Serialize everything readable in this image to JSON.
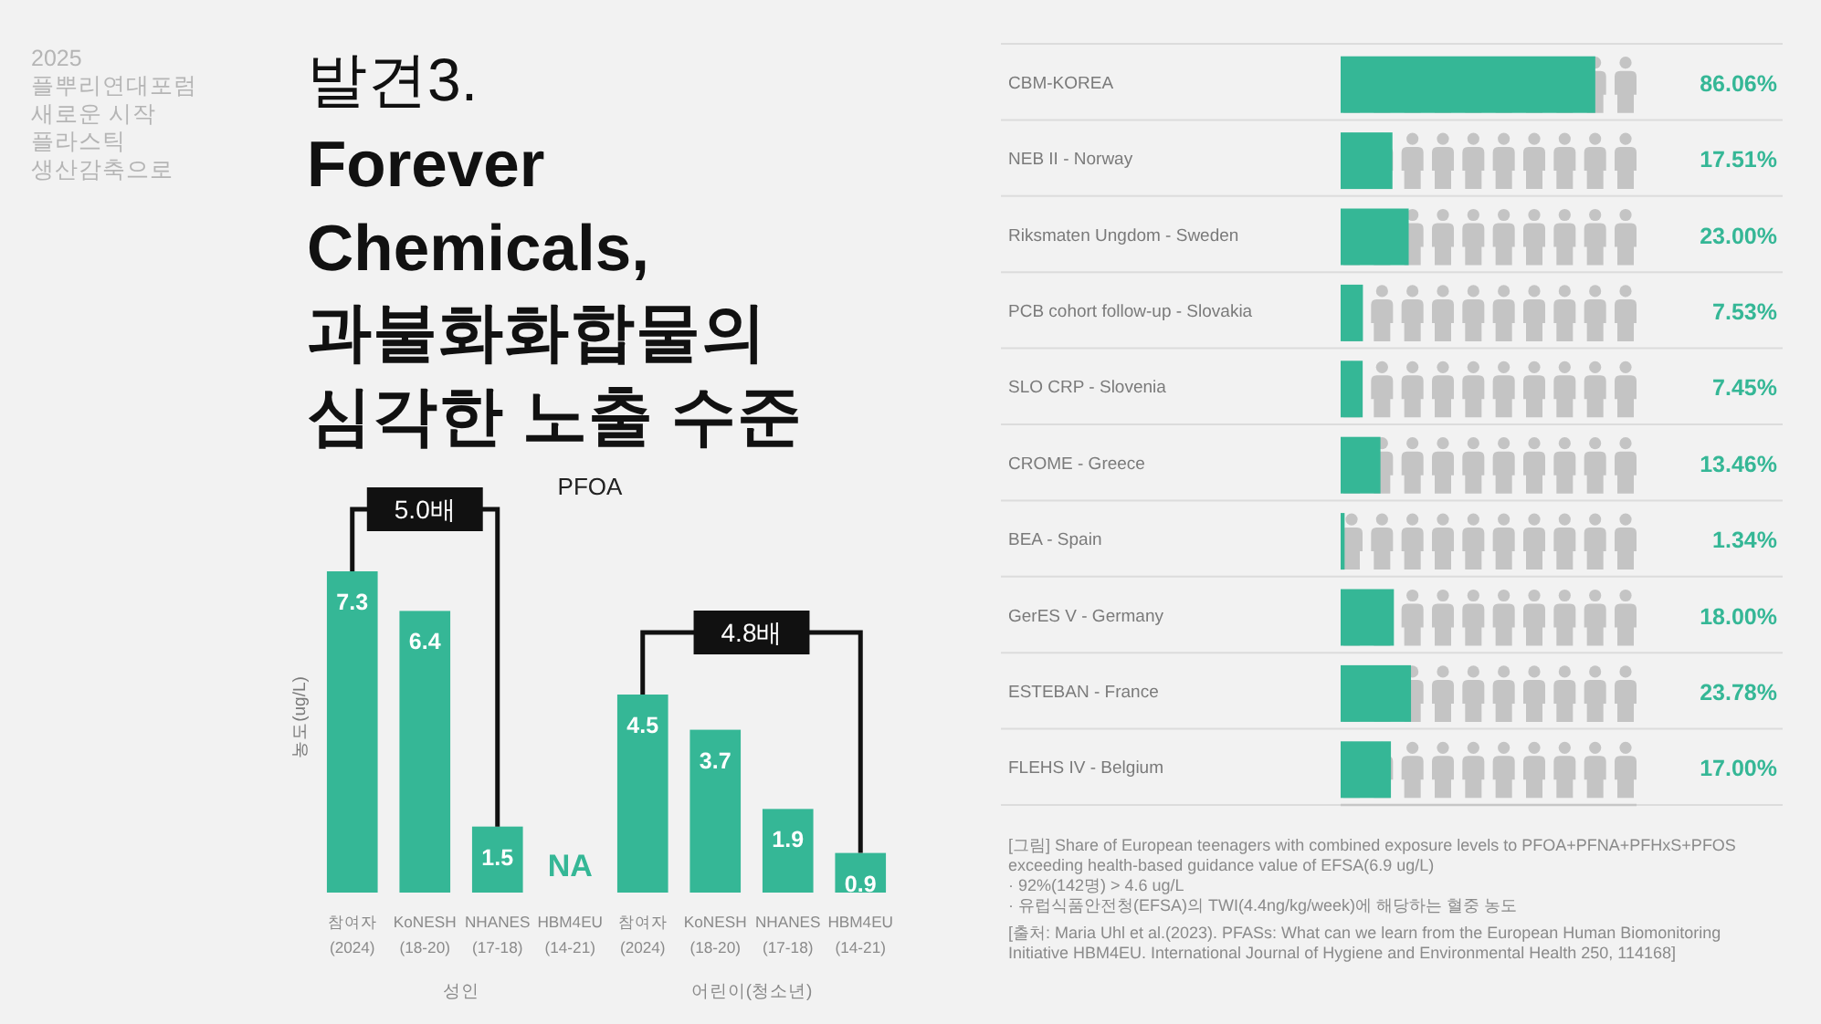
{
  "chart_data": [
    {
      "type": "other",
      "subtitle": "발견3.",
      "title": "Forever\nChemicals,\n과불화화합물의\n심각한 노출 수준",
      "annotations": [
        "2025\n플뿌리연대포럼\n새로운 시작\n플라스틱\n생산감축으로"
      ]
    },
    {
      "type": "bar",
      "title": "PFOA",
      "ylabel": "농도(ug/L)",
      "xlabel": "성인",
      "categories": [
        "참여자\n(2024)",
        "KoNESH\n(18-20)",
        "NHANES\n(17-18)",
        "HBM4EU\n(14-21)"
      ],
      "values": [
        7.3,
        6.4,
        1.5,
        null
      ],
      "value_labels": [
        "7.3",
        "6.4",
        "1.5",
        "NA"
      ],
      "color": "#35b796",
      "tick_labels": "x",
      "annotations": [
        "5.0배"
      ]
    },
    {
      "type": "bar",
      "xlabel": "어린이(청소년)",
      "categories": [
        "참여자\n(2024)",
        "KoNESH\n(18-20)",
        "NHANES\n(17-18)",
        "HBM4EU\n(14-21)"
      ],
      "values": [
        4.5,
        3.7,
        1.9,
        0.9
      ],
      "data_labels": true,
      "color": "#35b796",
      "tick_labels": "x",
      "annotations": [
        "4.8배"
      ]
    },
    {
      "type": "bar",
      "orientation": "horizontal",
      "categories": [
        "CBM-KOREA",
        "NEB II - Norway",
        "Riksmaten Ungdom - Sweden",
        "PCB cohort follow-up - Slovakia",
        "SLO CRP - Slovenia",
        "CROME - Greece",
        "BEA - Spain",
        "GerES V - Germany",
        "ESTEBAN - France",
        "FLEHS IV - Belgium"
      ],
      "values": [
        86.06,
        17.51,
        23.0,
        7.53,
        7.45,
        13.46,
        1.34,
        18.0,
        23.78,
        17.0
      ],
      "value_labels": [
        "86.06%",
        "17.51%",
        "23.00%",
        "7.53%",
        "7.45%",
        "13.46%",
        "1.34%",
        "18.00%",
        "23.78%",
        "17.00%"
      ],
      "color": "#35b796",
      "xlim": [
        0,
        100
      ],
      "tick_labels": "y",
      "grid": "y",
      "annotations": [
        "[그림] Share of European teenagers with combined exposure levels to PFOA+PFNA+PFHxS+PFOS\nexceeding health-based guidance value of EFSA(6.9 ug/L)\n· 92%(142명) > 4.6 ug/L\n· 유럽식품안전청(EFSA)의 TWI(4.4ng/kg/week)에 해당하는 혈중 농도",
        "[출처: Maria Uhl et al.(2023). PFASs: What can we learn from the European Human Biomonitoring\nInitiative HBM4EU. International Journal of Hygiene and Environmental Health 250, 114168]"
      ]
    }
  ]
}
